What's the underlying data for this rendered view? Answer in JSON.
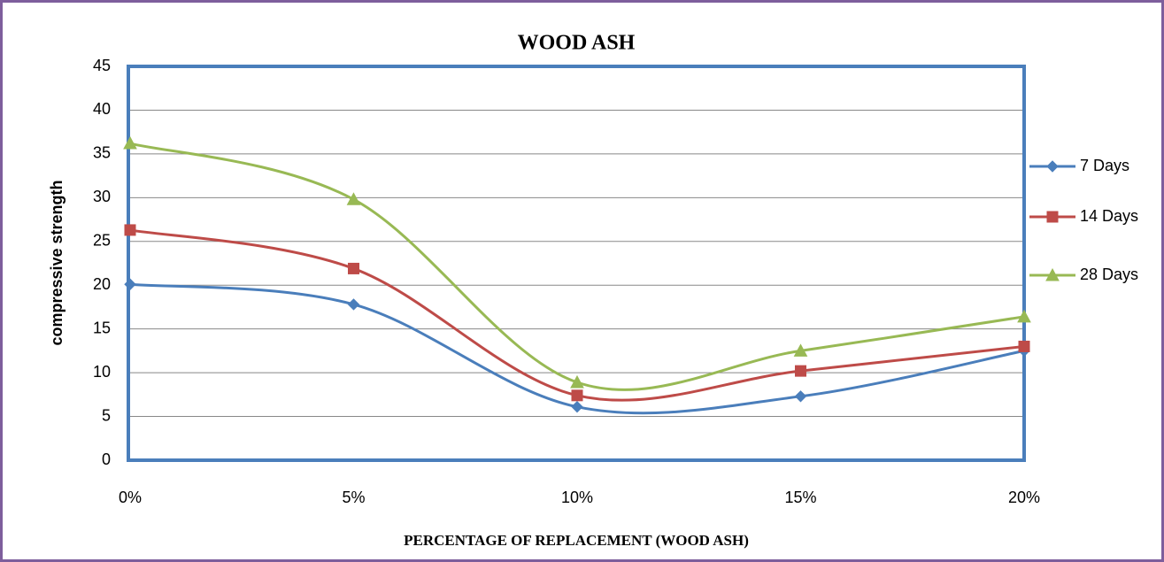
{
  "chart_data": {
    "type": "line",
    "title": "WOOD ASH",
    "x_label": "PERCENTAGE OF REPLACEMENT (WOOD ASH)",
    "y_label": "compressive strength",
    "categories": [
      "0%",
      "5%",
      "10%",
      "15%",
      "20%"
    ],
    "series": [
      {
        "name": "7 Days",
        "color": "#4a7ebb",
        "marker": "diamond",
        "values": [
          20.1,
          17.8,
          6.1,
          7.3,
          12.5
        ]
      },
      {
        "name": "14 Days",
        "color": "#be4b48",
        "marker": "square",
        "values": [
          26.3,
          21.9,
          7.4,
          10.2,
          13.0
        ]
      },
      {
        "name": "28 Days",
        "color": "#98b954",
        "marker": "triangle",
        "values": [
          36.2,
          29.8,
          8.9,
          12.5,
          16.4
        ]
      }
    ],
    "ylim": [
      0,
      45
    ],
    "yticks": [
      0,
      5,
      10,
      15,
      20,
      25,
      30,
      35,
      40,
      45
    ],
    "grid": true,
    "smooth": true,
    "legend": "right"
  }
}
